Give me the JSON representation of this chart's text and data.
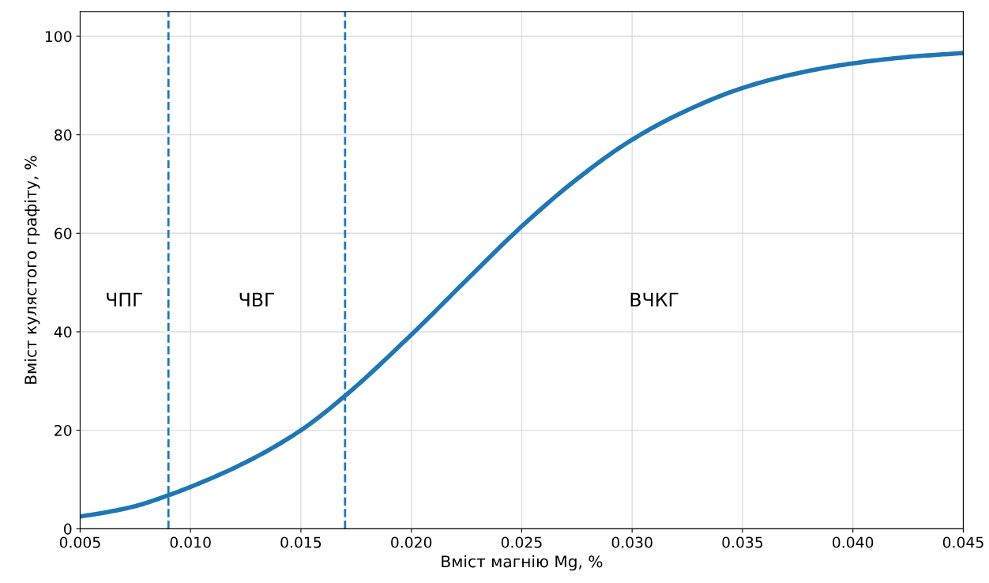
{
  "chart_data": {
    "type": "line",
    "xlabel": "Вміст магнію Mg, %",
    "ylabel": "Вміст кулястого графіту, %",
    "x": [
      0.005,
      0.006,
      0.0075,
      0.009,
      0.01,
      0.0125,
      0.015,
      0.017,
      0.02,
      0.0225,
      0.025,
      0.0275,
      0.03,
      0.0325,
      0.035,
      0.0375,
      0.04,
      0.0425,
      0.045
    ],
    "series": [
      {
        "color": "#1f77b4",
        "values": [
          2.5,
          3.2,
          4.6,
          6.8,
          8.5,
          13.5,
          20,
          27,
          39.4,
          50.5,
          61.4,
          71,
          79,
          85,
          89.5,
          92.5,
          94.5,
          95.8,
          96.6
        ]
      }
    ],
    "xlim": [
      0.005,
      0.045
    ],
    "ylim": [
      0,
      105
    ],
    "xticks": [
      {
        "value": 0.005,
        "label": "0.005"
      },
      {
        "value": 0.01,
        "label": "0.010"
      },
      {
        "value": 0.015,
        "label": "0.015"
      },
      {
        "value": 0.02,
        "label": "0.020"
      },
      {
        "value": 0.025,
        "label": "0.025"
      },
      {
        "value": 0.03,
        "label": "0.030"
      },
      {
        "value": 0.035,
        "label": "0.035"
      },
      {
        "value": 0.04,
        "label": "0.040"
      },
      {
        "value": 0.045,
        "label": "0.045"
      }
    ],
    "yticks": [
      0,
      20,
      40,
      60,
      80,
      100
    ],
    "ref_lines": [
      {
        "axis": "x",
        "value": 0.009,
        "color": "#1f77b4",
        "line_style": "dashed"
      },
      {
        "axis": "x",
        "value": 0.017,
        "color": "#1f77b4",
        "line_style": "dashed"
      }
    ],
    "annotations": [
      "ЧПГ",
      "ЧВГ",
      "ВЧКГ"
    ],
    "grid": true,
    "line_style": "solid",
    "marker": "none",
    "legend": false
  }
}
